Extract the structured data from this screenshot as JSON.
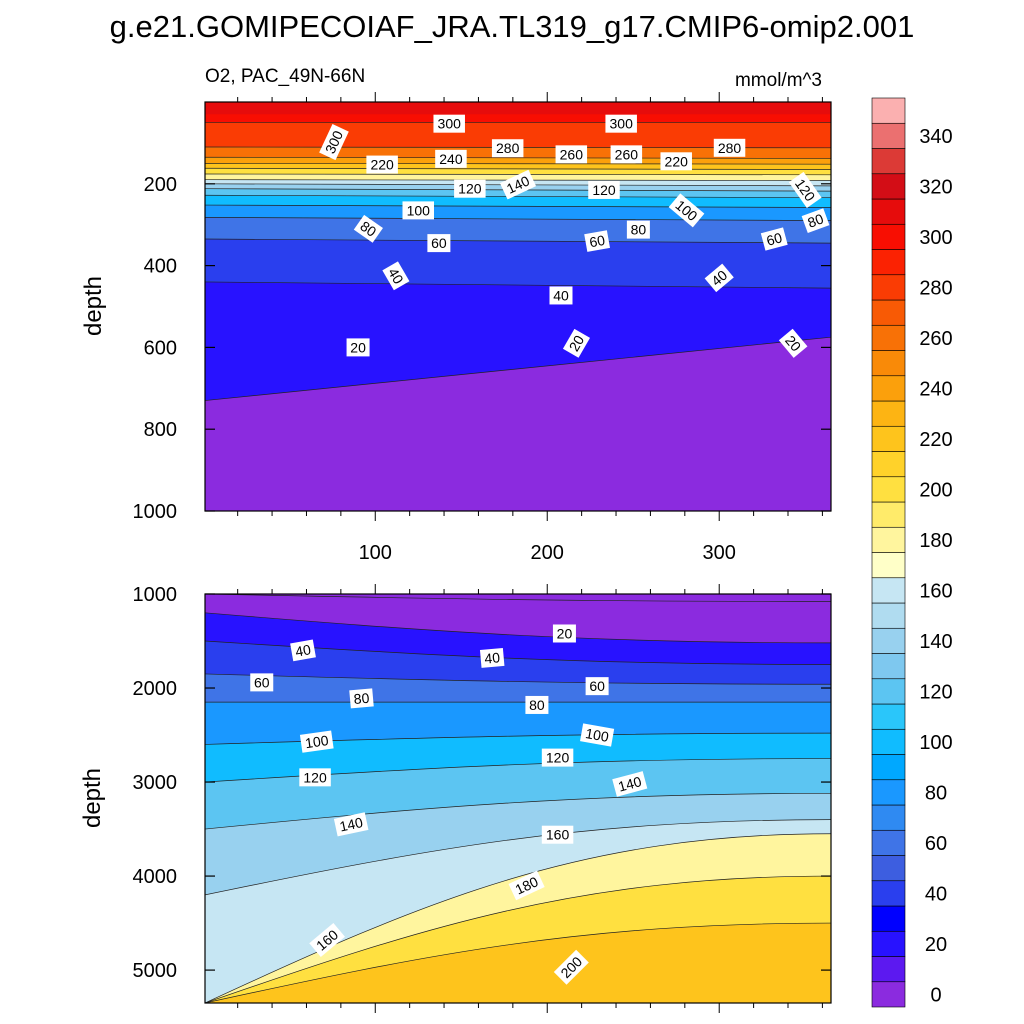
{
  "title": "g.e21.GOMIPECOIAF_JRA.TL319_g17.CMIP6-omip2.001",
  "chart_data": [
    {
      "type": "heatmap",
      "name": "upper-panel",
      "subtitle_left": "O2, PAC_49N-66N",
      "subtitle_right": "mmol/m^3",
      "ylabel": "depth",
      "xlim": [
        1,
        365
      ],
      "ylim": [
        0,
        1000
      ],
      "xticks": [
        100,
        200,
        300
      ],
      "yticks": [
        200,
        400,
        600,
        800,
        1000
      ],
      "contour_levels": [
        {
          "value": 300,
          "depth_left": 50,
          "depth_right": 50
        },
        {
          "value": 280,
          "depth_left": 110,
          "depth_right": 112
        },
        {
          "value": 260,
          "depth_left": 135,
          "depth_right": 138
        },
        {
          "value": 240,
          "depth_left": 150,
          "depth_right": 152
        },
        {
          "value": 220,
          "depth_left": 162,
          "depth_right": 165
        },
        {
          "value": 200,
          "depth_left": 176,
          "depth_right": 178
        },
        {
          "value": 180,
          "depth_left": 190,
          "depth_right": 192
        },
        {
          "value": 160,
          "depth_left": 200,
          "depth_right": 205
        },
        {
          "value": 140,
          "depth_left": 212,
          "depth_right": 218
        },
        {
          "value": 120,
          "depth_left": 228,
          "depth_right": 234
        },
        {
          "value": 100,
          "depth_left": 252,
          "depth_right": 258
        },
        {
          "value": 80,
          "depth_left": 282,
          "depth_right": 290
        },
        {
          "value": 60,
          "depth_left": 335,
          "depth_right": 345
        },
        {
          "value": 40,
          "depth_left": 440,
          "depth_right": 455
        },
        {
          "value": 20,
          "depth_left": 730,
          "depth_right": 575
        }
      ],
      "contour_labels": [
        {
          "text": "300",
          "x": 143,
          "depth": 53,
          "angle": 0
        },
        {
          "text": "300",
          "x": 243,
          "depth": 53,
          "angle": 0
        },
        {
          "text": "300",
          "x": 76,
          "depth": 98,
          "angle": -65
        },
        {
          "text": "280",
          "x": 177,
          "depth": 113,
          "angle": 0
        },
        {
          "text": "280",
          "x": 306,
          "depth": 112,
          "angle": 0
        },
        {
          "text": "260",
          "x": 214,
          "depth": 128,
          "angle": 0
        },
        {
          "text": "260",
          "x": 246,
          "depth": 128,
          "angle": 0
        },
        {
          "text": "240",
          "x": 144,
          "depth": 139,
          "angle": 0
        },
        {
          "text": "220",
          "x": 104,
          "depth": 153,
          "angle": 0
        },
        {
          "text": "220",
          "x": 275,
          "depth": 145,
          "angle": 0
        },
        {
          "text": "140",
          "x": 183,
          "depth": 202,
          "angle": -25
        },
        {
          "text": "120",
          "x": 155,
          "depth": 212,
          "angle": 0
        },
        {
          "text": "120",
          "x": 233,
          "depth": 215,
          "angle": 0
        },
        {
          "text": "120",
          "x": 350,
          "depth": 215,
          "angle": 55
        },
        {
          "text": "100",
          "x": 125,
          "depth": 265,
          "angle": 0
        },
        {
          "text": "100",
          "x": 281,
          "depth": 265,
          "angle": 40
        },
        {
          "text": "80",
          "x": 96,
          "depth": 310,
          "angle": 35
        },
        {
          "text": "80",
          "x": 253,
          "depth": 312,
          "angle": 0
        },
        {
          "text": "80",
          "x": 356,
          "depth": 290,
          "angle": -20
        },
        {
          "text": "60",
          "x": 137,
          "depth": 345,
          "angle": 0
        },
        {
          "text": "60",
          "x": 229,
          "depth": 340,
          "angle": -10
        },
        {
          "text": "60",
          "x": 332,
          "depth": 335,
          "angle": -15
        },
        {
          "text": "40",
          "x": 112,
          "depth": 425,
          "angle": 60
        },
        {
          "text": "40",
          "x": 208,
          "depth": 473,
          "angle": 0
        },
        {
          "text": "40",
          "x": 300,
          "depth": 430,
          "angle": -40
        },
        {
          "text": "20",
          "x": 90,
          "depth": 600,
          "angle": 0
        },
        {
          "text": "20",
          "x": 217,
          "depth": 590,
          "angle": -60
        },
        {
          "text": "20",
          "x": 343,
          "depth": 590,
          "angle": 50
        }
      ]
    },
    {
      "type": "heatmap",
      "name": "lower-panel",
      "ylabel": "depth",
      "xlim": [
        1,
        365
      ],
      "ylim": [
        1000,
        5350
      ],
      "yticks": [
        1000,
        2000,
        3000,
        4000,
        5000
      ],
      "contour_levels": [
        {
          "value": 0,
          "depth_left": 1000,
          "depth_right": 1080
        },
        {
          "value": 20,
          "depth_left": 1200,
          "depth_right": 1520
        },
        {
          "value": 40,
          "depth_left": 1500,
          "depth_right": 1750
        },
        {
          "value": 60,
          "depth_left": 1850,
          "depth_right": 1960
        },
        {
          "value": 80,
          "depth_left": 2150,
          "depth_right": 2150
        },
        {
          "value": 100,
          "depth_left": 2600,
          "depth_right": 2480
        },
        {
          "value": 120,
          "depth_left": 3000,
          "depth_right": 2750
        },
        {
          "value": 140,
          "depth_left": 3500,
          "depth_right": 3120
        },
        {
          "value": 160,
          "depth_left": 4200,
          "depth_right": 3400
        },
        {
          "value": 180,
          "depth_left": 5350,
          "depth_right": 3550
        },
        {
          "value": 200,
          "depth_left": 5350,
          "depth_right": 4000
        },
        {
          "value": 220,
          "depth_left": 5350,
          "depth_right": 4500
        }
      ],
      "contour_labels": [
        {
          "text": "20",
          "x": 210,
          "depth": 1420,
          "angle": 0
        },
        {
          "text": "40",
          "x": 58,
          "depth": 1600,
          "angle": -10
        },
        {
          "text": "40",
          "x": 168,
          "depth": 1680,
          "angle": -5
        },
        {
          "text": "60",
          "x": 34,
          "depth": 1940,
          "angle": 0
        },
        {
          "text": "60",
          "x": 229,
          "depth": 1980,
          "angle": 0
        },
        {
          "text": "80",
          "x": 92,
          "depth": 2110,
          "angle": -5
        },
        {
          "text": "80",
          "x": 194,
          "depth": 2180,
          "angle": 0
        },
        {
          "text": "100",
          "x": 66,
          "depth": 2570,
          "angle": -8
        },
        {
          "text": "100",
          "x": 229,
          "depth": 2500,
          "angle": 10
        },
        {
          "text": "120",
          "x": 65,
          "depth": 2950,
          "angle": 0
        },
        {
          "text": "120",
          "x": 206,
          "depth": 2740,
          "angle": 0
        },
        {
          "text": "140",
          "x": 86,
          "depth": 3450,
          "angle": -12
        },
        {
          "text": "140",
          "x": 248,
          "depth": 3020,
          "angle": -15
        },
        {
          "text": "160",
          "x": 206,
          "depth": 3560,
          "angle": 0
        },
        {
          "text": "160",
          "x": 72,
          "depth": 4680,
          "angle": -40
        },
        {
          "text": "180",
          "x": 188,
          "depth": 4100,
          "angle": -25
        },
        {
          "text": "200",
          "x": 214,
          "depth": 4970,
          "angle": -45
        }
      ]
    },
    {
      "type": "colorbar",
      "name": "colorbar",
      "levels": [
        0,
        10,
        20,
        30,
        40,
        50,
        60,
        70,
        80,
        90,
        100,
        110,
        120,
        130,
        140,
        150,
        160,
        170,
        180,
        190,
        200,
        210,
        220,
        230,
        240,
        250,
        260,
        270,
        280,
        290,
        300,
        310,
        320,
        330,
        340,
        350
      ],
      "tick_labels": [
        "0",
        "20",
        "40",
        "60",
        "80",
        "100",
        "120",
        "140",
        "160",
        "180",
        "200",
        "220",
        "240",
        "260",
        "280",
        "300",
        "320",
        "340"
      ],
      "colors": [
        "#8b2bdf",
        "#5c19f0",
        "#2812ff",
        "#0000ff",
        "#2a3fee",
        "#3d5ee0",
        "#3f74e7",
        "#2f8af2",
        "#1a98ff",
        "#00a8ff",
        "#10bcff",
        "#2ac6fa",
        "#5cc5f2",
        "#7ec8ef",
        "#98d1ef",
        "#b0dcf0",
        "#c6e6f3",
        "#ffffc8",
        "#fff59e",
        "#ffeb6a",
        "#ffe040",
        "#ffd22a",
        "#fec41c",
        "#fdb413",
        "#fba00c",
        "#f98a08",
        "#f87106",
        "#f85a05",
        "#fa3c04",
        "#fb2202",
        "#f80e02",
        "#e60c0c",
        "#d30d16",
        "#dc3a36",
        "#eb7070",
        "#fbb0b0"
      ]
    }
  ]
}
